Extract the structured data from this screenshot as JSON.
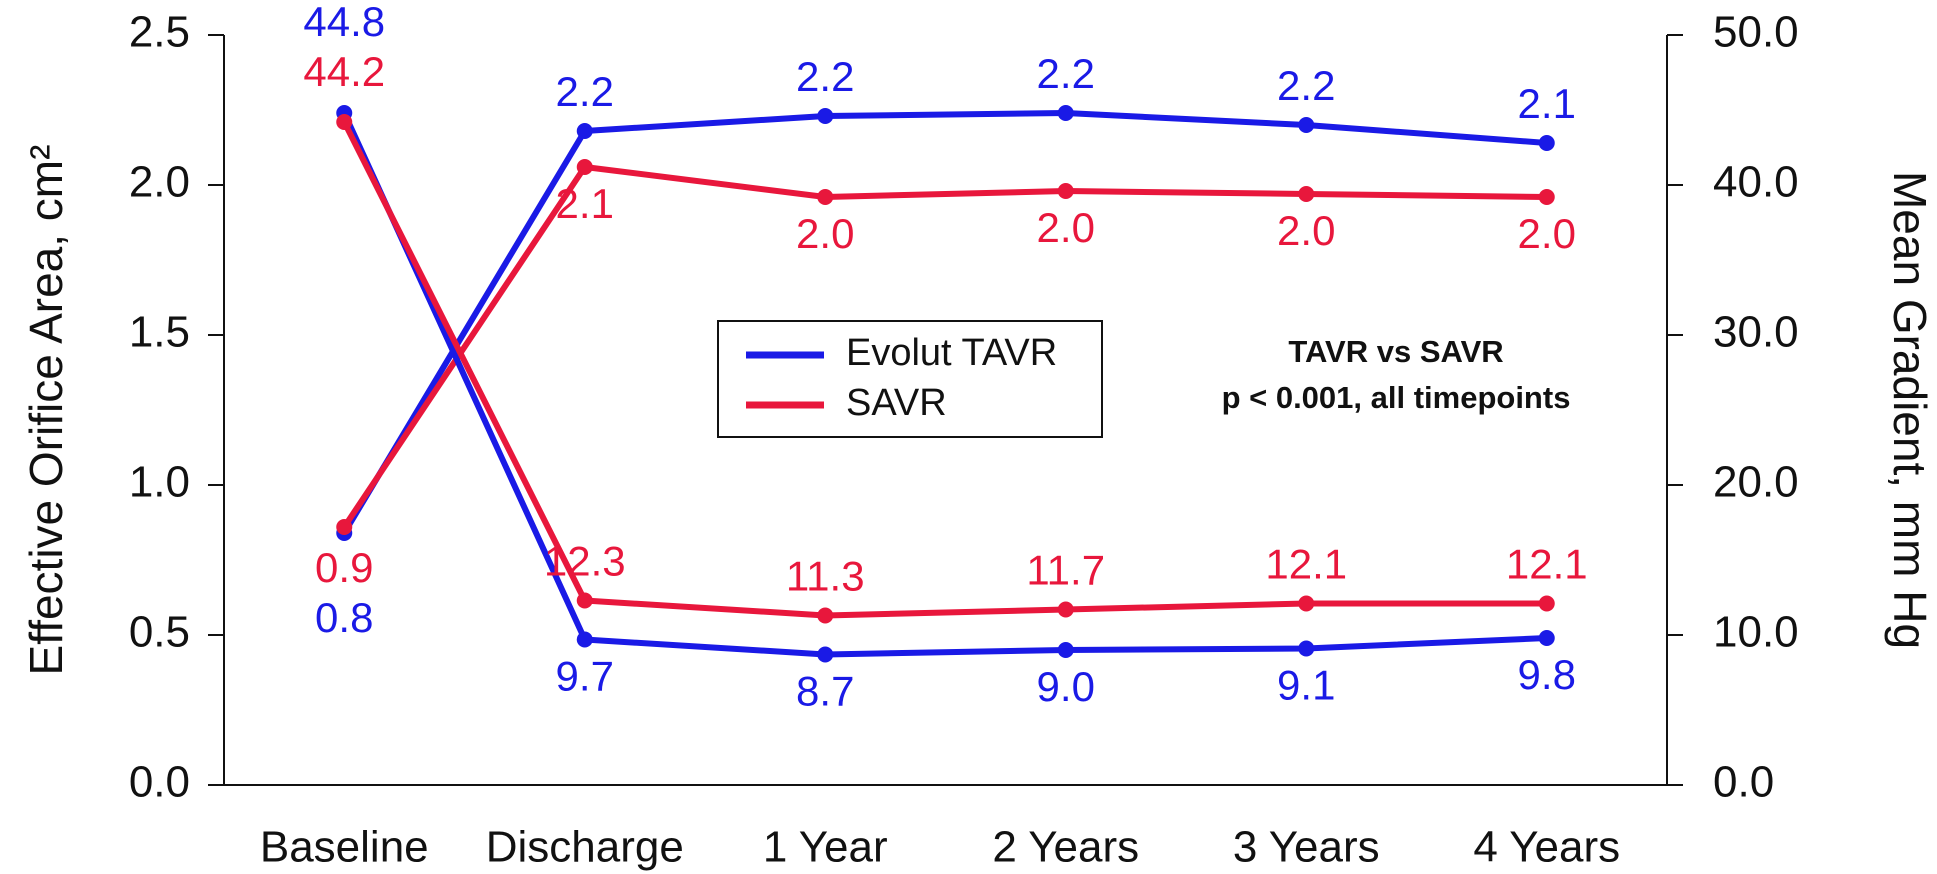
{
  "chart_data": {
    "type": "line",
    "y_label": "Effective Orifice Area, cm²",
    "y2_label": "Mean Gradient, mm Hg",
    "annotations": [
      "TAVR vs SAVR",
      "p < 0.001, all timepoints"
    ],
    "categories": [
      "Baseline",
      "Discharge",
      "1 Year",
      "2 Years",
      "3 Years",
      "4 Years"
    ],
    "series": [
      {
        "name": "Evolut TAVR",
        "color": "#1a1ae6",
        "values": [
          0.84,
          2.18,
          2.23,
          2.24,
          2.2,
          2.14
        ],
        "value_labels": [
          "0.8",
          "2.2",
          "2.2",
          "2.2",
          "2.2",
          "2.1"
        ]
      },
      {
        "name": "SAVR",
        "color": "#e8173c",
        "values": [
          0.86,
          2.06,
          1.96,
          1.98,
          1.97,
          1.96
        ],
        "value_labels": [
          "0.9",
          "2.1",
          "2.0",
          "2.0",
          "2.0",
          "2.0"
        ]
      },
      {
        "name": "Evolut TAVR",
        "color": "#1a1ae6",
        "axis": "y2",
        "values": [
          44.8,
          9.7,
          8.7,
          9.0,
          9.1,
          9.8
        ],
        "value_labels": [
          "44.8",
          "9.7",
          "8.7",
          "9.0",
          "9.1",
          "9.8"
        ]
      },
      {
        "name": "SAVR",
        "color": "#e8173c",
        "axis": "y2",
        "values": [
          44.2,
          12.3,
          11.3,
          11.7,
          12.1,
          12.1
        ],
        "value_labels": [
          "44.2",
          "12.3",
          "11.3",
          "11.7",
          "12.1",
          "12.1"
        ]
      }
    ],
    "ylim": [
      0,
      2.5
    ],
    "yticks": [
      {
        "value": 0,
        "label": "0.0"
      },
      0.5,
      {
        "value": 1,
        "label": "1.0"
      },
      1.5,
      {
        "value": 2,
        "label": "2.0"
      },
      2.5
    ],
    "y2lim": [
      0,
      50
    ],
    "y2ticks": [
      {
        "value": 0,
        "label": "0.0"
      },
      {
        "value": 10,
        "label": "10.0"
      },
      {
        "value": 20,
        "label": "20.0"
      },
      {
        "value": 30,
        "label": "30.0"
      },
      {
        "value": 40,
        "label": "40.0"
      },
      {
        "value": 50,
        "label": "50.0"
      }
    ],
    "grid": false
  }
}
